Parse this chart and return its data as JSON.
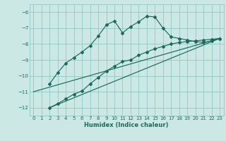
{
  "title": "",
  "xlabel": "Humidex (Indice chaleur)",
  "background_color": "#cce8e5",
  "grid_color": "#99ccc8",
  "line_color": "#1a6b5e",
  "xlim": [
    -0.5,
    23.5
  ],
  "ylim": [
    -12.5,
    -5.5
  ],
  "yticks": [
    -12,
    -11,
    -10,
    -9,
    -8,
    -7,
    -6
  ],
  "xticks": [
    0,
    1,
    2,
    3,
    4,
    5,
    6,
    7,
    8,
    9,
    10,
    11,
    12,
    13,
    14,
    15,
    16,
    17,
    18,
    19,
    20,
    21,
    22,
    23
  ],
  "series1_x": [
    2,
    3,
    4,
    5,
    6,
    7,
    8,
    9,
    10,
    11,
    12,
    13,
    14,
    15,
    16,
    17,
    18,
    19,
    20,
    21,
    22,
    23
  ],
  "series1_y": [
    -10.5,
    -9.8,
    -9.2,
    -8.85,
    -8.5,
    -8.1,
    -7.5,
    -6.8,
    -6.55,
    -7.3,
    -6.9,
    -6.6,
    -6.25,
    -6.3,
    -7.0,
    -7.55,
    -7.65,
    -7.75,
    -7.85,
    -7.9,
    -7.8,
    -7.65
  ],
  "series2_x": [
    2,
    3,
    4,
    5,
    6,
    7,
    8,
    9,
    10,
    11,
    12,
    13,
    14,
    15,
    16,
    17,
    18,
    19,
    20,
    21,
    22,
    23
  ],
  "series2_y": [
    -12.0,
    -11.75,
    -11.45,
    -11.15,
    -10.95,
    -10.5,
    -10.1,
    -9.7,
    -9.4,
    -9.1,
    -9.0,
    -8.7,
    -8.5,
    -8.3,
    -8.15,
    -8.0,
    -7.9,
    -7.85,
    -7.8,
    -7.75,
    -7.7,
    -7.65
  ],
  "series3_x": [
    0,
    23
  ],
  "series3_y": [
    -11.0,
    -7.65
  ],
  "series4_x": [
    2,
    23
  ],
  "series4_y": [
    -12.0,
    -7.65
  ]
}
